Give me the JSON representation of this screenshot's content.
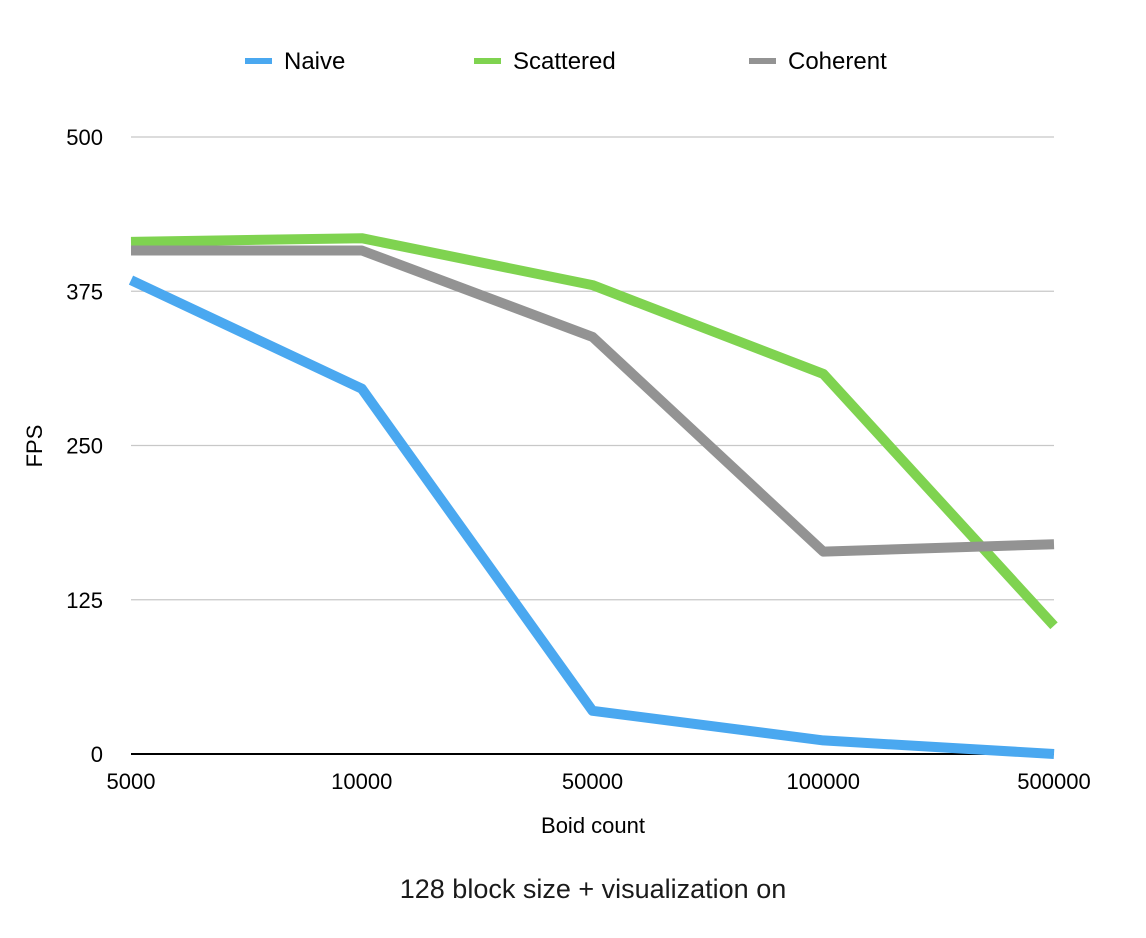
{
  "chart_data": {
    "type": "line",
    "categories": [
      "5000",
      "10000",
      "50000",
      "100000",
      "500000"
    ],
    "series": [
      {
        "name": "Naive",
        "color": "#4aa8f0",
        "values": [
          384,
          296,
          35,
          11,
          0
        ]
      },
      {
        "name": "Scattered",
        "color": "#7fd350",
        "values": [
          415,
          418,
          380,
          308,
          104
        ]
      },
      {
        "name": "Coherent",
        "color": "#939393",
        "values": [
          408,
          408,
          338,
          164,
          170
        ]
      }
    ],
    "title": "",
    "caption": "128 block size + visualization on",
    "xlabel": "Boid count",
    "ylabel": "FPS",
    "ylim": [
      0,
      500
    ],
    "yticks": [
      0,
      125,
      250,
      375,
      500
    ],
    "ytick_labels": [
      "0",
      "125",
      "250",
      "375",
      "500"
    ],
    "grid": true,
    "legend_position": "top"
  }
}
